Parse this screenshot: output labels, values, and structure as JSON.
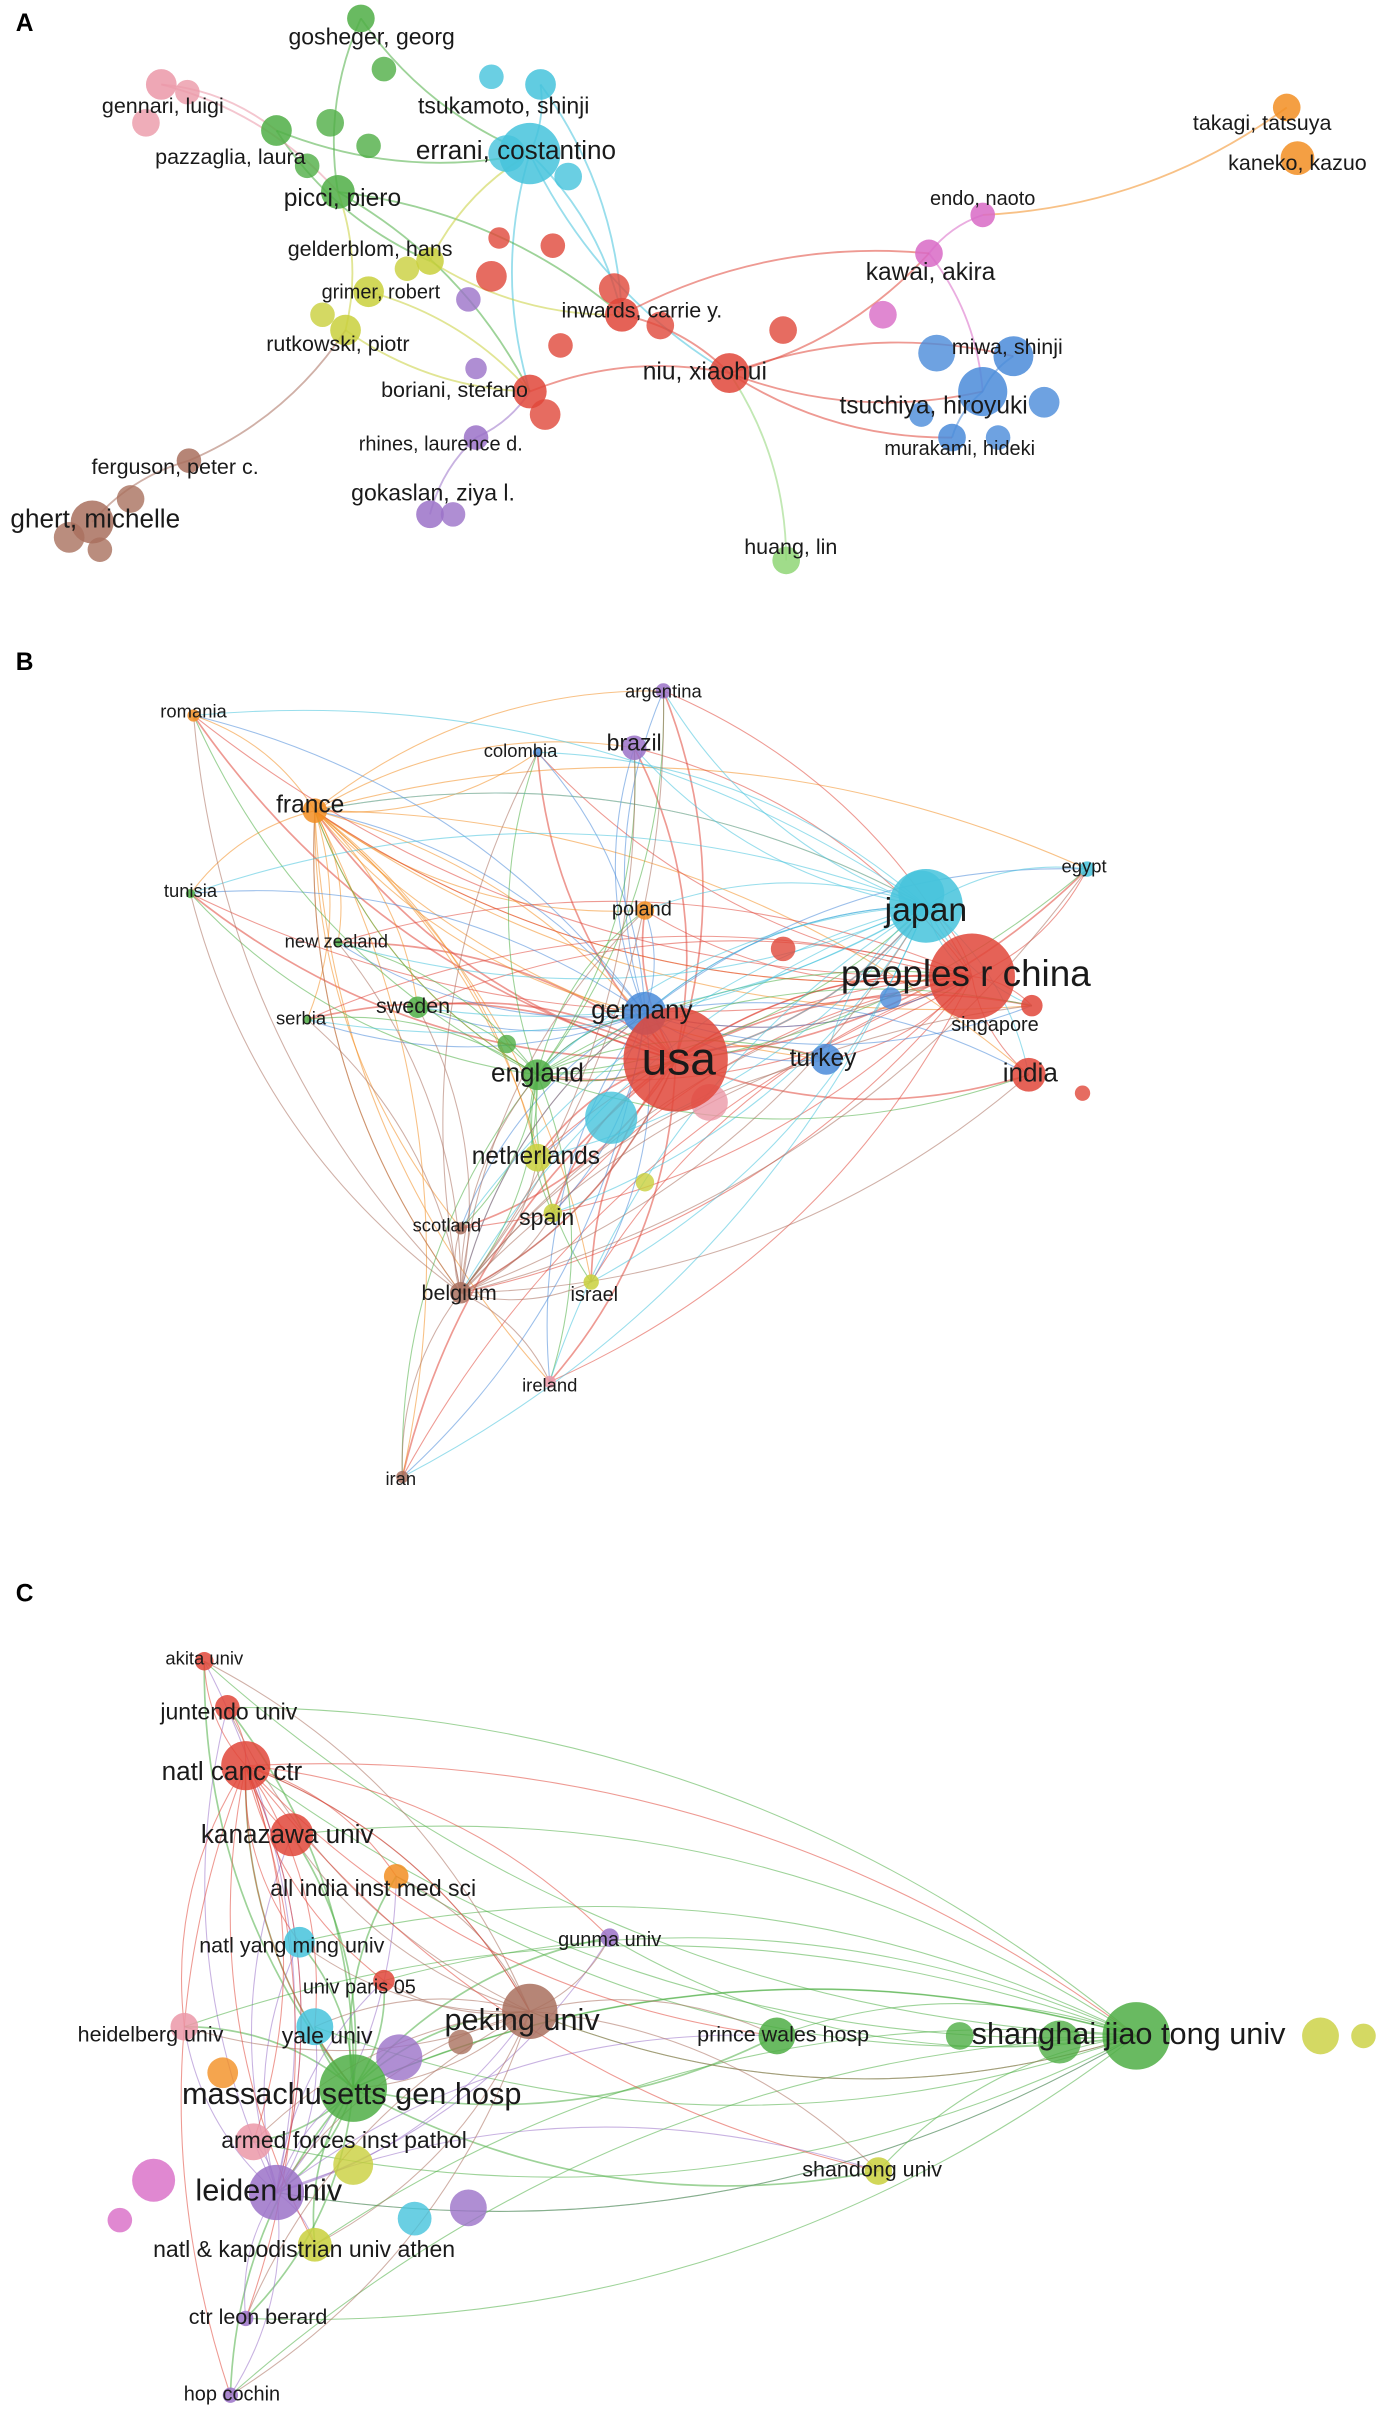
{
  "panels": [
    {
      "label": "A",
      "nodes": [
        "gosheger, georg",
        "tsukamoto, shinji",
        "gennari, luigi",
        "errani, costantino",
        "pazzaglia, laura",
        "picci, piero",
        "gelderblom, hans",
        "grimer, robert",
        "inwards, carrie y.",
        "rutkowski, piotr",
        "niu, xiaohui",
        "boriani, stefano",
        "rhines, laurence d.",
        "ferguson, peter c.",
        "gokaslan, ziya l.",
        "ghert, michelle",
        "huang, lin",
        "takagi, tatsuya",
        "kaneko, kazuo",
        "endo, naoto",
        "kawai, akira",
        "miwa, shinji",
        "tsuchiya, hiroyuki",
        "murakami, hideki"
      ]
    },
    {
      "label": "B",
      "nodes": [
        "romania",
        "argentina",
        "colombia",
        "brazil",
        "france",
        "egypt",
        "tunisia",
        "japan",
        "poland",
        "new zealand",
        "peoples r china",
        "sweden",
        "germany",
        "serbia",
        "singapore",
        "usa",
        "turkey",
        "india",
        "england",
        "netherlands",
        "scotland",
        "spain",
        "belgium",
        "israel",
        "ireland",
        "iran"
      ]
    },
    {
      "label": "C",
      "nodes": [
        "akita univ",
        "juntendo univ",
        "natl canc ctr",
        "kanazawa univ",
        "all india inst med sci",
        "natl yang ming univ",
        "gunma univ",
        "univ paris 05",
        "peking univ",
        "heidelberg univ",
        "yale univ",
        "prince wales hosp",
        "shanghai jiao tong univ",
        "massachusetts gen hosp",
        "armed forces inst pathol",
        "shandong univ",
        "leiden univ",
        "natl & kapodistrian univ athen",
        "ctr leon berard",
        "hop cochin"
      ]
    }
  ]
}
